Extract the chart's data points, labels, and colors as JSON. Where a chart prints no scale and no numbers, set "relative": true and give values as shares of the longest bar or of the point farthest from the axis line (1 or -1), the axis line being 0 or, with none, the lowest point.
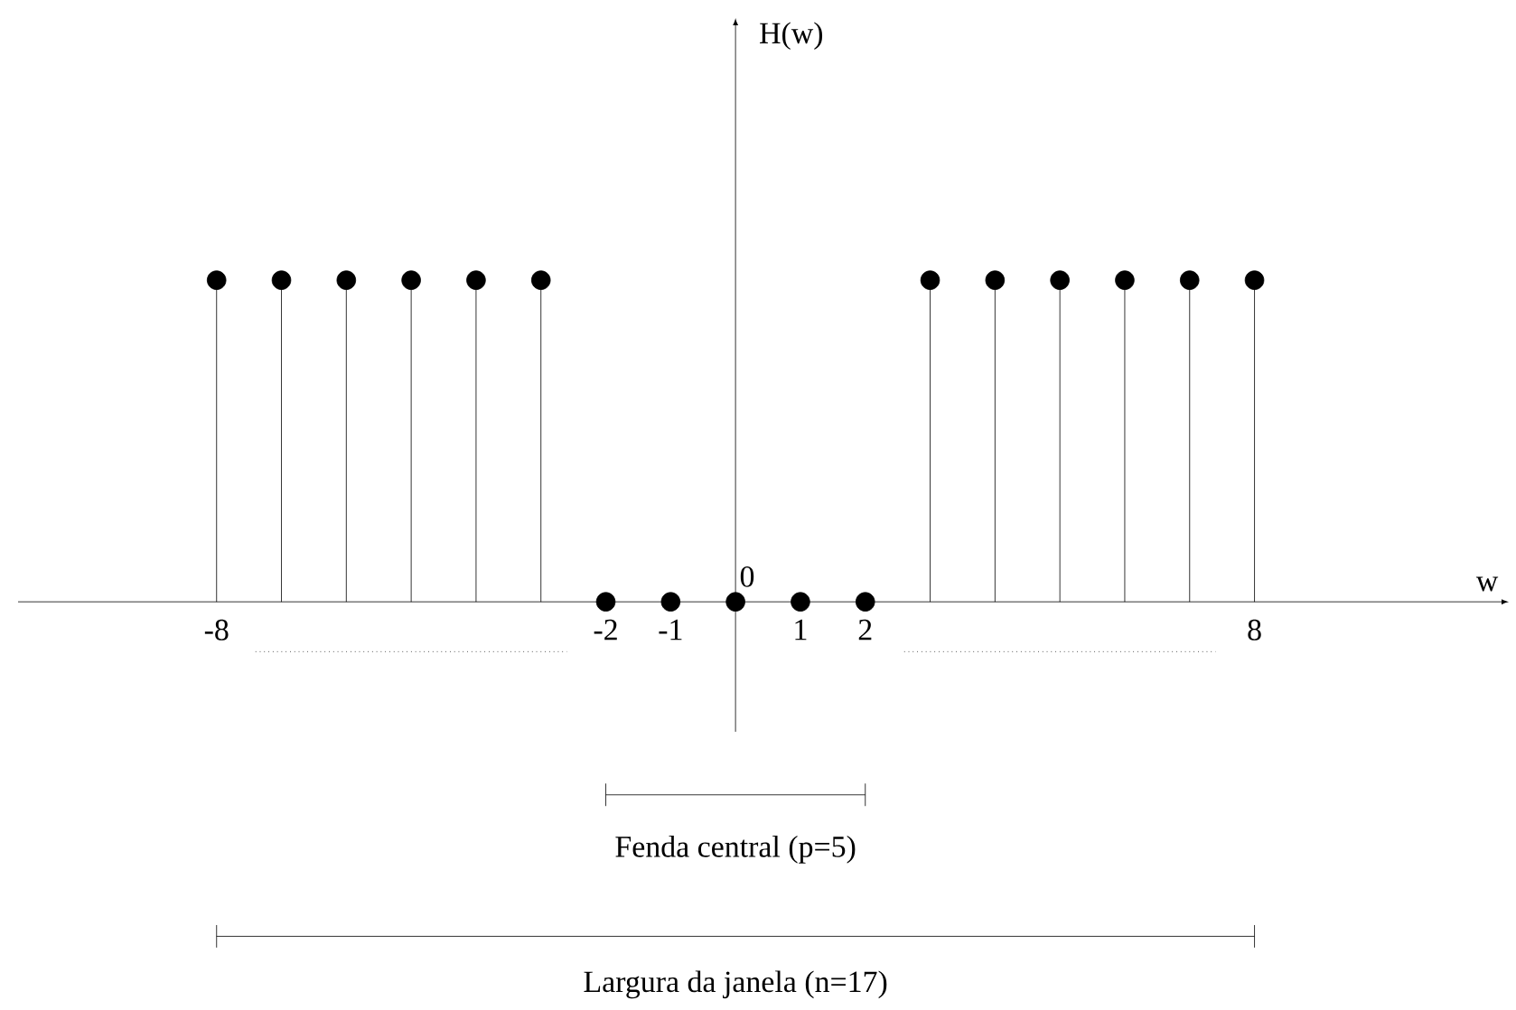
{
  "chart_data": {
    "type": "lollipop",
    "xlabel": "w",
    "x": [
      -8,
      -7,
      -6,
      -5,
      -4,
      -3,
      -2,
      -1,
      0,
      1,
      2,
      3,
      4,
      5,
      6,
      7,
      8
    ],
    "values": [
      1,
      1,
      1,
      1,
      1,
      1,
      0,
      0,
      0,
      0,
      0,
      1,
      1,
      1,
      1,
      1,
      1
    ],
    "relative": true,
    "color": "#000000",
    "marker": "circle",
    "xlim": [
      -11.06,
      11.92
    ],
    "xticks": [
      -8,
      -2,
      -1,
      1,
      2,
      8
    ],
    "annotations": [
      "H(w)",
      {
        "text": "0",
        "x": 0,
        "y": 0
      },
      "Fenda central (p=5)",
      "Largura da janela (n=17)"
    ]
  }
}
